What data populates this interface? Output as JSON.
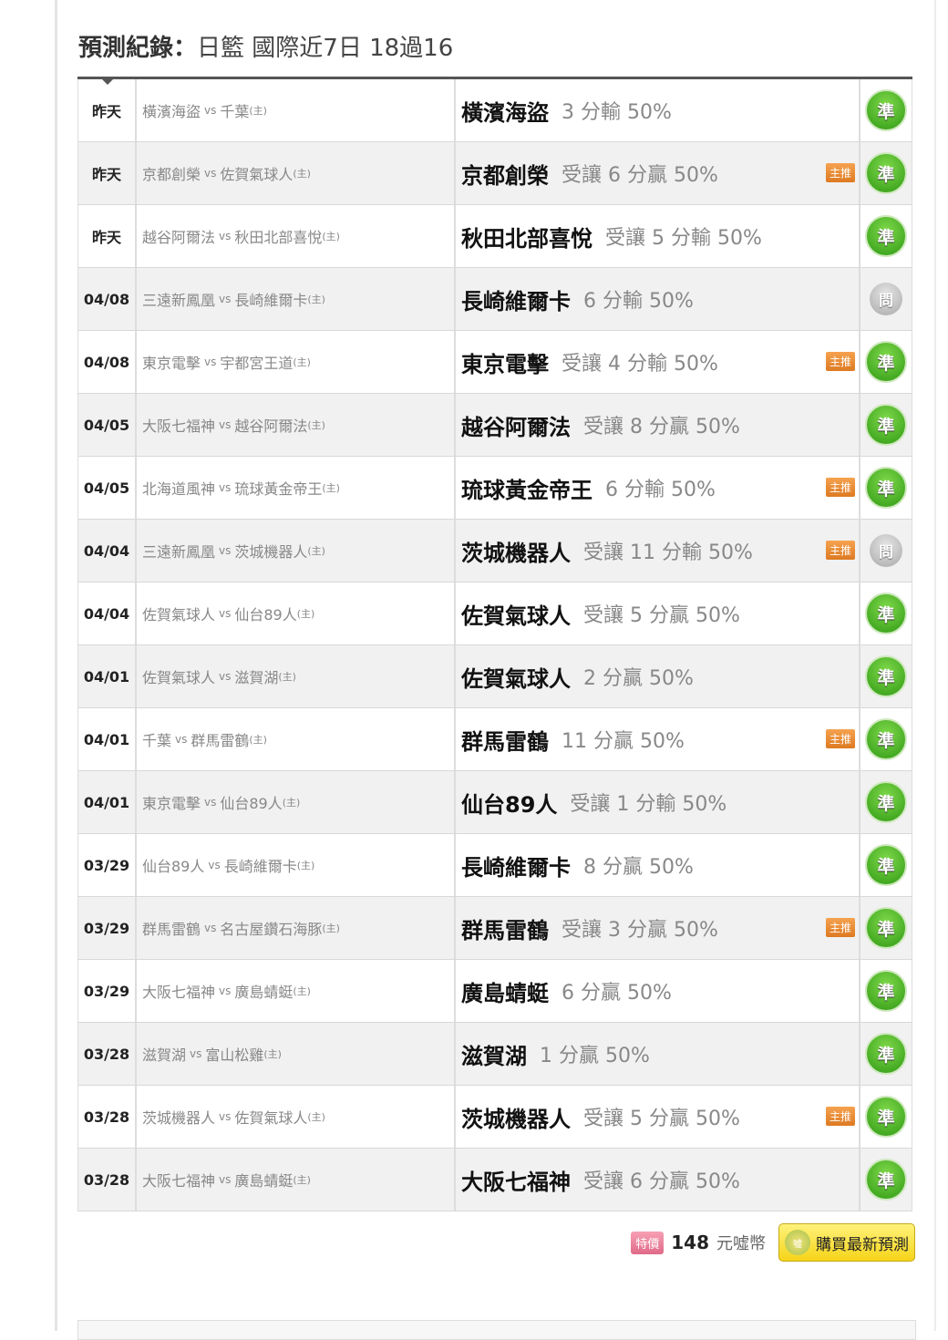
{
  "title": {
    "prefix": "預測紀錄：",
    "text": "日籃 國際近7日 18過16"
  },
  "rows": [
    {
      "date": "昨天",
      "away": "橫濱海盜",
      "home": "千葉",
      "pick": "橫濱海盜",
      "detail": "3 分輸 50%",
      "featured": false,
      "result": "準"
    },
    {
      "date": "昨天",
      "away": "京都創榮",
      "home": "佐賀氣球人",
      "pick": "京都創榮",
      "detail": "受讓 6 分贏 50%",
      "featured": true,
      "result": "準"
    },
    {
      "date": "昨天",
      "away": "越谷阿爾法",
      "home": "秋田北部喜悅",
      "pick": "秋田北部喜悅",
      "detail": "受讓 5 分輸 50%",
      "featured": false,
      "result": "準"
    },
    {
      "date": "04/08",
      "away": "三遠新鳳凰",
      "home": "長崎維爾卡",
      "pick": "長崎維爾卡",
      "detail": "6 分輸 50%",
      "featured": false,
      "result": "問"
    },
    {
      "date": "04/08",
      "away": "東京電擊",
      "home": "宇都宮王道",
      "pick": "東京電擊",
      "detail": "受讓 4 分輸 50%",
      "featured": true,
      "result": "準"
    },
    {
      "date": "04/05",
      "away": "大阪七福神",
      "home": "越谷阿爾法",
      "pick": "越谷阿爾法",
      "detail": "受讓 8 分贏 50%",
      "featured": false,
      "result": "準"
    },
    {
      "date": "04/05",
      "away": "北海道風神",
      "home": "琉球黃金帝王",
      "pick": "琉球黃金帝王",
      "detail": "6 分輸 50%",
      "featured": true,
      "result": "準"
    },
    {
      "date": "04/04",
      "away": "三遠新鳳凰",
      "home": "茨城機器人",
      "pick": "茨城機器人",
      "detail": "受讓 11 分輸 50%",
      "featured": true,
      "result": "問"
    },
    {
      "date": "04/04",
      "away": "佐賀氣球人",
      "home": "仙台89人",
      "pick": "佐賀氣球人",
      "detail": "受讓 5 分贏 50%",
      "featured": false,
      "result": "準"
    },
    {
      "date": "04/01",
      "away": "佐賀氣球人",
      "home": "滋賀湖",
      "pick": "佐賀氣球人",
      "detail": "2 分贏 50%",
      "featured": false,
      "result": "準"
    },
    {
      "date": "04/01",
      "away": "千葉",
      "home": "群馬雷鶴",
      "pick": "群馬雷鶴",
      "detail": "11 分贏 50%",
      "featured": true,
      "result": "準"
    },
    {
      "date": "04/01",
      "away": "東京電擊",
      "home": "仙台89人",
      "pick": "仙台89人",
      "detail": "受讓 1 分輸 50%",
      "featured": false,
      "result": "準"
    },
    {
      "date": "03/29",
      "away": "仙台89人",
      "home": "長崎維爾卡",
      "pick": "長崎維爾卡",
      "detail": "8 分贏 50%",
      "featured": false,
      "result": "準"
    },
    {
      "date": "03/29",
      "away": "群馬雷鶴",
      "home": "名古屋鑽石海豚",
      "pick": "群馬雷鶴",
      "detail": "受讓 3 分贏 50%",
      "featured": true,
      "result": "準"
    },
    {
      "date": "03/29",
      "away": "大阪七福神",
      "home": "廣島蜻蜓",
      "pick": "廣島蜻蜓",
      "detail": "6 分贏 50%",
      "featured": false,
      "result": "準"
    },
    {
      "date": "03/28",
      "away": "滋賀湖",
      "home": "富山松雞",
      "pick": "滋賀湖",
      "detail": "1 分贏 50%",
      "featured": false,
      "result": "準"
    },
    {
      "date": "03/28",
      "away": "茨城機器人",
      "home": "佐賀氣球人",
      "pick": "茨城機器人",
      "detail": "受讓 5 分贏 50%",
      "featured": true,
      "result": "準"
    },
    {
      "date": "03/28",
      "away": "大阪七福神",
      "home": "廣島蜻蜓",
      "pick": "大阪七福神",
      "detail": "受讓 6 分贏 50%",
      "featured": false,
      "result": "準"
    }
  ],
  "labels": {
    "vs": "vs",
    "home_mark": "(主)",
    "featured": "主推"
  },
  "footer": {
    "special": "特價",
    "price": "148",
    "unit": "元噓幣",
    "coin": "噓",
    "buy": "購買最新預測"
  }
}
